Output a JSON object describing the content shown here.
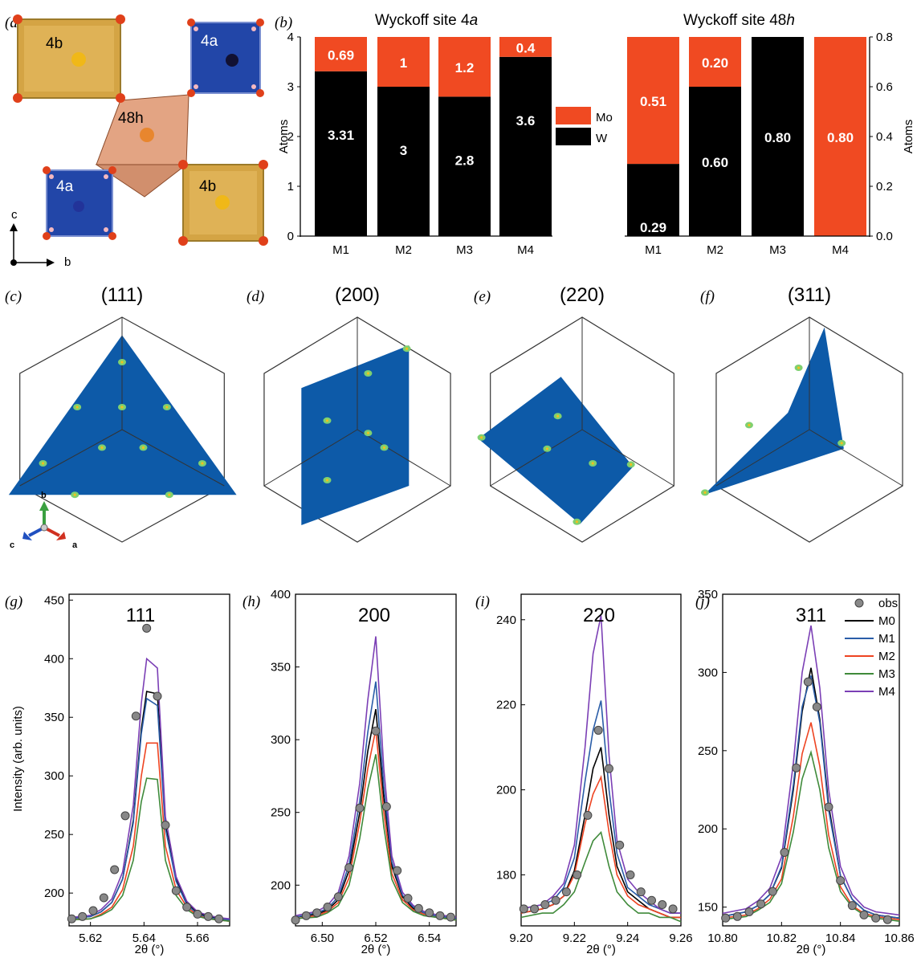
{
  "panel_labels": {
    "a": "(a)",
    "b": "(b)",
    "c": "(c)",
    "d": "(d)",
    "e": "(e)",
    "f": "(f)",
    "g": "(g)",
    "h": "(h)",
    "i": "(i)",
    "j": "(j)"
  },
  "structure": {
    "site_labels": {
      "b_top": "4b",
      "a_top": "4a",
      "h48": "48h",
      "a_bottom": "4a",
      "b_bottom": "4b"
    },
    "axes": {
      "c": "c",
      "b": "b"
    }
  },
  "colors": {
    "Mo": "#f04a22",
    "W": "#000000",
    "M0": "#000000",
    "M1": "#2a5da8",
    "M2": "#ee4422",
    "M3": "#3f8a3a",
    "M4": "#7b3fb5",
    "obs": "#888888",
    "plane": "#0d5aa8",
    "gold": "#d9a94a",
    "blue_poly": "#2246a8",
    "orange_poly": "#d9865a"
  },
  "planes": {
    "titles": [
      "(111)",
      "(200)",
      "(220)",
      "(311)"
    ],
    "axes": {
      "b": "b",
      "c": "c",
      "a": "a"
    }
  },
  "chart_data": [
    {
      "type": "bar",
      "stacked": true,
      "title_main": "Wyckoff site 4",
      "title_site": "a",
      "ylabel": "Atoms",
      "ylim": [
        0,
        4
      ],
      "yticks": [
        "0",
        "1",
        "2",
        "3",
        "4"
      ],
      "categories": [
        "M1",
        "M2",
        "M3",
        "M4"
      ],
      "series": [
        {
          "name": "W",
          "values": [
            3.31,
            3,
            2.8,
            3.6
          ],
          "labels": [
            "3.31",
            "3",
            "2.8",
            "3.6"
          ]
        },
        {
          "name": "Mo",
          "values": [
            0.69,
            1,
            1.2,
            0.4
          ],
          "labels": [
            "0.69",
            "1",
            "1.2",
            "0.4"
          ]
        }
      ],
      "legend": {
        "placement": "between panels",
        "entries": [
          "Mo",
          "W"
        ]
      }
    },
    {
      "type": "bar",
      "stacked": true,
      "title_main": "Wyckoff site 48",
      "title_site": "h",
      "ylabel": "Atoms",
      "ylim": [
        0,
        0.8
      ],
      "yticks": [
        "0.0",
        "0.2",
        "0.4",
        "0.6",
        "0.8"
      ],
      "categories": [
        "M1",
        "M2",
        "M3",
        "M4"
      ],
      "series": [
        {
          "name": "W",
          "values": [
            0.29,
            0.6,
            0.8,
            0
          ],
          "labels": [
            "0.29",
            "0.60",
            "0.80",
            ""
          ]
        },
        {
          "name": "Mo",
          "values": [
            0.51,
            0.2,
            0,
            0.8
          ],
          "labels": [
            "0.51",
            "0.20",
            "",
            "0.80"
          ]
        }
      ]
    },
    {
      "type": "line",
      "title": "111",
      "xlabel": "2θ (°)",
      "ylabel": "Intensity (arb. units)",
      "xlim": [
        5.612,
        5.672
      ],
      "ylim": [
        172,
        455
      ],
      "xticks": [
        5.62,
        5.64,
        5.66
      ],
      "xtick_labels": [
        "5.62",
        "5.64",
        "5.66"
      ],
      "yticks": [
        200,
        250,
        300,
        350,
        400,
        450
      ],
      "ytick_labels": [
        "200",
        "250",
        "300",
        "350",
        "400",
        "450"
      ],
      "x": [
        5.612,
        5.62,
        5.624,
        5.628,
        5.632,
        5.636,
        5.639,
        5.641,
        5.645,
        5.648,
        5.652,
        5.656,
        5.66,
        5.664,
        5.668,
        5.672
      ],
      "series": [
        {
          "name": "M0",
          "values": [
            178,
            180,
            184,
            192,
            212,
            262,
            340,
            372,
            370,
            258,
            212,
            192,
            183,
            180,
            178,
            177
          ]
        },
        {
          "name": "M1",
          "values": [
            178,
            180,
            184,
            192,
            212,
            260,
            336,
            366,
            360,
            255,
            210,
            190,
            182,
            179,
            178,
            177
          ]
        },
        {
          "name": "M2",
          "values": [
            177,
            178,
            182,
            188,
            203,
            240,
            300,
            328,
            328,
            240,
            203,
            188,
            181,
            178,
            177,
            176
          ]
        },
        {
          "name": "M3",
          "values": [
            177,
            178,
            181,
            186,
            198,
            228,
            278,
            298,
            297,
            228,
            198,
            186,
            180,
            178,
            177,
            176
          ]
        },
        {
          "name": "M4",
          "values": [
            179,
            181,
            186,
            195,
            218,
            275,
            362,
            400,
            392,
            265,
            214,
            193,
            184,
            181,
            179,
            178
          ]
        }
      ],
      "obs": {
        "x": [
          5.613,
          5.617,
          5.621,
          5.625,
          5.629,
          5.633,
          5.637,
          5.641,
          5.645,
          5.648,
          5.652,
          5.656,
          5.66,
          5.664,
          5.668
        ],
        "y": [
          178,
          180,
          185,
          196,
          220,
          266,
          351,
          426,
          368,
          258,
          202,
          188,
          182,
          180,
          178
        ]
      }
    },
    {
      "type": "line",
      "title": "200",
      "xlabel": "2θ (°)",
      "xlim": [
        6.49,
        6.55
      ],
      "ylim": [
        172,
        400
      ],
      "xticks": [
        6.5,
        6.52,
        6.54
      ],
      "xtick_labels": [
        "6.50",
        "6.52",
        "6.54"
      ],
      "yticks": [
        200,
        250,
        300,
        350,
        400
      ],
      "ytick_labels": [
        "200",
        "250",
        "300",
        "350",
        "400"
      ],
      "x": [
        6.49,
        6.498,
        6.502,
        6.506,
        6.51,
        6.514,
        6.517,
        6.52,
        6.523,
        6.526,
        6.53,
        6.534,
        6.538,
        6.542,
        6.546,
        6.55
      ],
      "series": [
        {
          "name": "M0",
          "values": [
            178,
            180,
            183,
            190,
            210,
            250,
            292,
            321,
            260,
            213,
            192,
            184,
            181,
            179,
            178,
            177
          ]
        },
        {
          "name": "M1",
          "values": [
            178,
            181,
            184,
            192,
            214,
            258,
            305,
            340,
            268,
            216,
            193,
            185,
            181,
            179,
            178,
            177
          ]
        },
        {
          "name": "M2",
          "values": [
            177,
            179,
            182,
            188,
            205,
            243,
            280,
            307,
            250,
            208,
            190,
            183,
            180,
            178,
            177,
            176
          ]
        },
        {
          "name": "M3",
          "values": [
            177,
            178,
            181,
            186,
            200,
            232,
            266,
            290,
            240,
            204,
            188,
            182,
            179,
            178,
            177,
            176
          ]
        },
        {
          "name": "M4",
          "values": [
            179,
            182,
            186,
            195,
            220,
            270,
            327,
            371,
            280,
            220,
            195,
            186,
            182,
            180,
            179,
            178
          ]
        }
      ],
      "obs": {
        "x": [
          6.49,
          6.494,
          6.498,
          6.502,
          6.506,
          6.51,
          6.514,
          6.52,
          6.524,
          6.528,
          6.532,
          6.536,
          6.54,
          6.544,
          6.548
        ],
        "y": [
          176,
          179,
          181,
          185,
          192,
          212,
          253,
          306,
          254,
          210,
          191,
          184,
          181,
          179,
          178
        ]
      }
    },
    {
      "type": "line",
      "title": "220",
      "xlabel": "2θ (°)",
      "xlim": [
        9.2,
        9.26
      ],
      "ylim": [
        168,
        246
      ],
      "xticks": [
        9.2,
        9.22,
        9.24,
        9.26
      ],
      "xtick_labels": [
        "9.20",
        "9.22",
        "9.24",
        "9.26"
      ],
      "yticks": [
        180,
        200,
        220,
        240
      ],
      "ytick_labels": [
        "180",
        "200",
        "220",
        "240"
      ],
      "x": [
        9.2,
        9.208,
        9.212,
        9.216,
        9.22,
        9.224,
        9.227,
        9.23,
        9.233,
        9.236,
        9.24,
        9.244,
        9.248,
        9.252,
        9.256,
        9.26
      ],
      "series": [
        {
          "name": "M0",
          "values": [
            171,
            172,
            173,
            175,
            181,
            194,
            205,
            210,
            194,
            182,
            176,
            174,
            172,
            171,
            170,
            170
          ]
        },
        {
          "name": "M1",
          "values": [
            172,
            173,
            174,
            177,
            184,
            202,
            214,
            221,
            200,
            185,
            177,
            175,
            173,
            172,
            171,
            171
          ]
        },
        {
          "name": "M2",
          "values": [
            171,
            172,
            173,
            175,
            180,
            192,
            199,
            203,
            190,
            180,
            175,
            173,
            172,
            171,
            170,
            170
          ]
        },
        {
          "name": "M3",
          "values": [
            170,
            171,
            171,
            173,
            176,
            183,
            188,
            190,
            182,
            176,
            173,
            171,
            171,
            170,
            170,
            169
          ]
        },
        {
          "name": "M4",
          "values": [
            172,
            173,
            175,
            178,
            187,
            210,
            232,
            241,
            208,
            188,
            179,
            176,
            174,
            172,
            171,
            171
          ]
        }
      ],
      "obs": {
        "x": [
          9.201,
          9.205,
          9.209,
          9.213,
          9.217,
          9.221,
          9.225,
          9.229,
          9.233,
          9.237,
          9.241,
          9.245,
          9.249,
          9.253,
          9.257
        ],
        "y": [
          172,
          172,
          173,
          174,
          176,
          180,
          194,
          214,
          205,
          187,
          180,
          176,
          174,
          173,
          172
        ]
      }
    },
    {
      "type": "line",
      "title": "311",
      "xlabel": "2θ (°)",
      "xlim": [
        10.8,
        10.86
      ],
      "ylim": [
        138,
        350
      ],
      "xticks": [
        10.8,
        10.82,
        10.84,
        10.86
      ],
      "xtick_labels": [
        "10.80",
        "10.82",
        "10.84",
        "10.86"
      ],
      "yticks": [
        150,
        200,
        250,
        300,
        350
      ],
      "ytick_labels": [
        "150",
        "200",
        "250",
        "300",
        "350"
      ],
      "x": [
        10.8,
        10.808,
        10.812,
        10.816,
        10.82,
        10.824,
        10.827,
        10.83,
        10.833,
        10.836,
        10.84,
        10.844,
        10.848,
        10.852,
        10.856,
        10.86
      ],
      "series": [
        {
          "name": "M0",
          "values": [
            144,
            147,
            151,
            158,
            175,
            225,
            275,
            303,
            270,
            215,
            170,
            155,
            148,
            145,
            144,
            143
          ]
        },
        {
          "name": "M1",
          "values": [
            144,
            147,
            151,
            158,
            176,
            228,
            278,
            298,
            268,
            212,
            170,
            155,
            148,
            145,
            144,
            143
          ]
        },
        {
          "name": "M2",
          "values": [
            143,
            145,
            149,
            155,
            168,
            208,
            248,
            268,
            240,
            196,
            163,
            151,
            146,
            144,
            143,
            142
          ]
        },
        {
          "name": "M3",
          "values": [
            142,
            144,
            148,
            153,
            165,
            198,
            232,
            249,
            225,
            188,
            160,
            150,
            145,
            143,
            142,
            141
          ]
        },
        {
          "name": "M4",
          "values": [
            146,
            149,
            154,
            162,
            182,
            242,
            300,
            330,
            290,
            225,
            176,
            158,
            150,
            147,
            146,
            145
          ]
        }
      ],
      "obs": {
        "x": [
          10.801,
          10.805,
          10.809,
          10.813,
          10.817,
          10.821,
          10.825,
          10.829,
          10.832,
          10.836,
          10.84,
          10.844,
          10.848,
          10.852,
          10.856
        ],
        "y": [
          143,
          144,
          147,
          152,
          160,
          185,
          239,
          294,
          278,
          214,
          167,
          151,
          145,
          143,
          142
        ]
      },
      "legend": {
        "placement": "top-right",
        "entries": [
          "obs",
          "M0",
          "M1",
          "M2",
          "M3",
          "M4"
        ]
      }
    }
  ]
}
